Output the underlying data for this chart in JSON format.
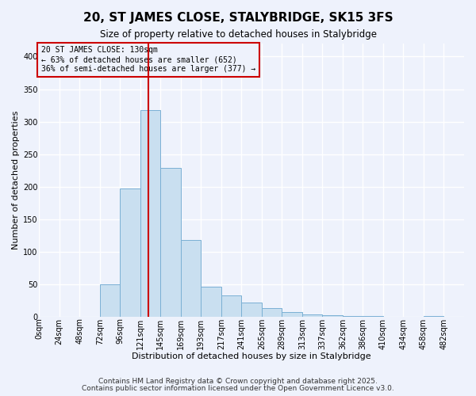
{
  "title": "20, ST JAMES CLOSE, STALYBRIDGE, SK15 3FS",
  "subtitle": "Size of property relative to detached houses in Stalybridge",
  "xlabel": "Distribution of detached houses by size in Stalybridge",
  "ylabel": "Number of detached properties",
  "bin_labels": [
    "0sqm",
    "24sqm",
    "48sqm",
    "72sqm",
    "96sqm",
    "121sqm",
    "145sqm",
    "169sqm",
    "193sqm",
    "217sqm",
    "241sqm",
    "265sqm",
    "289sqm",
    "313sqm",
    "337sqm",
    "362sqm",
    "386sqm",
    "410sqm",
    "434sqm",
    "458sqm",
    "482sqm"
  ],
  "bin_values": [
    0,
    0,
    0,
    50,
    197,
    318,
    229,
    118,
    46,
    33,
    22,
    14,
    7,
    4,
    2,
    1,
    1,
    0,
    0,
    1,
    0
  ],
  "bar_color": "#c9dff0",
  "bar_edge_color": "#7ab0d4",
  "vline_x": 5.42,
  "vline_color": "#cc0000",
  "ylim": [
    0,
    420
  ],
  "yticks": [
    0,
    50,
    100,
    150,
    200,
    250,
    300,
    350,
    400
  ],
  "annotation_title": "20 ST JAMES CLOSE: 130sqm",
  "annotation_line1": "← 63% of detached houses are smaller (652)",
  "annotation_line2": "36% of semi-detached houses are larger (377) →",
  "footer1": "Contains HM Land Registry data © Crown copyright and database right 2025.",
  "footer2": "Contains public sector information licensed under the Open Government Licence v3.0.",
  "background_color": "#eef2fc",
  "grid_color": "#ffffff",
  "title_fontsize": 11,
  "subtitle_fontsize": 8.5,
  "axis_label_fontsize": 8,
  "tick_fontsize": 7,
  "annotation_fontsize": 7,
  "footer_fontsize": 6.5
}
